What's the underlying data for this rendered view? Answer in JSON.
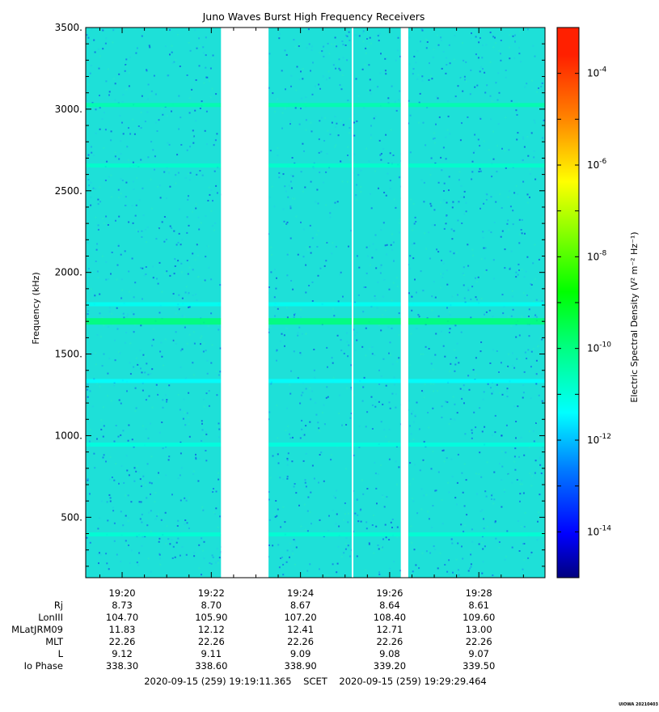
{
  "chart_data": {
    "type": "heatmap",
    "title": "Juno Waves Burst High Frequency Receivers",
    "ylabel": "Frequency (kHz)",
    "colorbar_label": "Electric Spectral Density (V² m⁻² Hz⁻¹)",
    "ylim": [
      130,
      3500
    ],
    "y_ticks": [
      500,
      1000,
      1500,
      2000,
      2500,
      3000,
      3500
    ],
    "y_tick_labels": [
      "500.",
      "1000.",
      "1500.",
      "2000.",
      "2500.",
      "3000.",
      "3500."
    ],
    "x_time_range": [
      "19:19:11",
      "19:29:29"
    ],
    "x_ticks": [
      "19:20",
      "19:22",
      "19:24",
      "19:26",
      "19:28"
    ],
    "colorbar": {
      "scale": "log",
      "range": [
        1e-15,
        0.001
      ],
      "tick_exponents": [
        -14,
        -12,
        -10,
        -8,
        -6,
        -4
      ],
      "colors": [
        "#00007f",
        "#0000ff",
        "#007fff",
        "#00ffff",
        "#00ff7f",
        "#00ff00",
        "#7fff00",
        "#ffff00",
        "#ff7f00",
        "#ff0000",
        "#ff3000"
      ]
    },
    "background_level_log10": -11.8,
    "emission_bands": [
      {
        "frequency": 3025,
        "level_log10": -10.6
      },
      {
        "frequency": 2655,
        "level_log10": -10.9
      },
      {
        "frequency": 1805,
        "level_log10": -11.3
      },
      {
        "frequency": 1700,
        "level_log10": -10.1
      },
      {
        "frequency": 1335,
        "level_log10": -11.4
      },
      {
        "frequency": 945,
        "level_log10": -11.1
      },
      {
        "frequency": 395,
        "level_log10": -11.0
      }
    ],
    "data_gaps": [
      {
        "start": "19:22:13",
        "end": "19:23:17"
      },
      {
        "start": "19:26:15",
        "end": "19:26:25"
      }
    ],
    "ephemeris_labels": [
      "Rj",
      "LonIII",
      "MLatJRM09",
      "MLT",
      "L",
      "Io Phase"
    ],
    "ephemeris": {
      "Rj": [
        "8.73",
        "8.70",
        "8.67",
        "8.64",
        "8.61"
      ],
      "LonIII": [
        "104.70",
        "105.90",
        "107.20",
        "108.40",
        "109.60"
      ],
      "MLatJRM09": [
        "11.83",
        "12.12",
        "12.41",
        "12.71",
        "13.00"
      ],
      "MLT": [
        "22.26",
        "22.26",
        "22.26",
        "22.26",
        "22.26"
      ],
      "L": [
        "9.12",
        "9.11",
        "9.09",
        "9.08",
        "9.07"
      ],
      "Io Phase": [
        "338.30",
        "338.60",
        "338.90",
        "339.20",
        "339.50"
      ]
    },
    "time_span_text": "2020-09-15 (259) 19:19:11.365    SCET    2020-09-15 (259) 19:29:29.464",
    "credit": "UIOWA 20210403"
  }
}
